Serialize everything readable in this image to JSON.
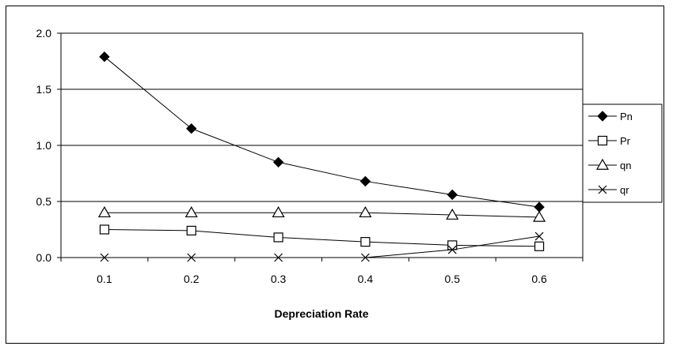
{
  "chart_data": {
    "type": "line",
    "title": "",
    "xlabel": "Depreciation Rate",
    "ylabel": "",
    "x": [
      0.1,
      0.2,
      0.3,
      0.4,
      0.5,
      0.6
    ],
    "x_tick_labels": [
      "0.1",
      "0.2",
      "0.3",
      "0.4",
      "0.5",
      "0.6"
    ],
    "ylim": [
      0,
      2.0
    ],
    "y_ticks": [
      0.0,
      0.5,
      1.0,
      1.5,
      2.0
    ],
    "y_tick_labels": [
      "0.0",
      "0.5",
      "1.0",
      "1.5",
      "2.0"
    ],
    "grid": "horizontal",
    "legend_position": "right",
    "series": [
      {
        "name": "Pn",
        "marker": "filled-diamond",
        "values": [
          1.79,
          1.15,
          0.85,
          0.68,
          0.56,
          0.45
        ]
      },
      {
        "name": "Pr",
        "marker": "open-square",
        "values": [
          0.25,
          0.24,
          0.18,
          0.14,
          0.11,
          0.1
        ]
      },
      {
        "name": "qn",
        "marker": "open-triangle",
        "values": [
          0.4,
          0.4,
          0.4,
          0.4,
          0.38,
          0.36
        ]
      },
      {
        "name": "qr",
        "marker": "x",
        "values": [
          0.0,
          0.0,
          0.0,
          0.0,
          0.07,
          0.19
        ]
      }
    ],
    "colors": {
      "line": "#000000",
      "background": "#ffffff",
      "grid": "#000000"
    }
  }
}
